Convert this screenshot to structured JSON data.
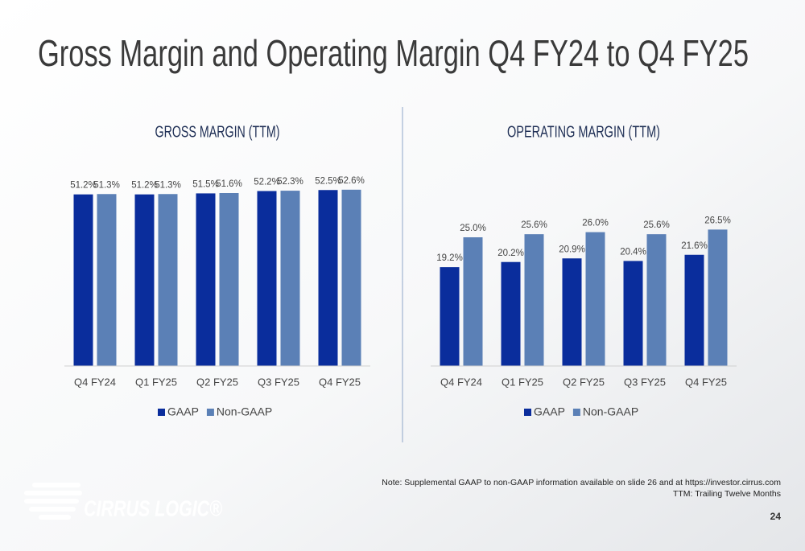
{
  "title": "Gross Margin and Operating Margin Q4 FY24 to Q4 FY25",
  "chart_data": [
    {
      "type": "bar",
      "title": "GROSS MARGIN (TTM)",
      "categories": [
        "Q4 FY24",
        "Q1 FY25",
        "Q2 FY25",
        "Q3 FY25",
        "Q4 FY25"
      ],
      "series": [
        {
          "name": "GAAP",
          "color": "#0a2d9c",
          "values": [
            51.2,
            51.2,
            51.5,
            52.2,
            52.5
          ],
          "value_labels": [
            "51.2%",
            "51.2%",
            "51.5%",
            "52.2%",
            "52.5%"
          ]
        },
        {
          "name": "Non-GAAP",
          "color": "#5b80b6",
          "values": [
            51.3,
            51.3,
            51.6,
            52.3,
            52.6
          ],
          "value_labels": [
            "51.3%",
            "51.3%",
            "51.6%",
            "52.3%",
            "52.6%"
          ]
        }
      ],
      "ylim": [
        0,
        60
      ],
      "legend": "bottom"
    },
    {
      "type": "bar",
      "title": "OPERATING MARGIN (TTM)",
      "categories": [
        "Q4 FY24",
        "Q1 FY25",
        "Q2 FY25",
        "Q3 FY25",
        "Q4 FY25"
      ],
      "series": [
        {
          "name": "GAAP",
          "color": "#0a2d9c",
          "values": [
            19.2,
            20.2,
            20.9,
            20.4,
            21.6
          ],
          "value_labels": [
            "19.2%",
            "20.2%",
            "20.9%",
            "20.4%",
            "21.6%"
          ]
        },
        {
          "name": "Non-GAAP",
          "color": "#5b80b6",
          "values": [
            25.0,
            25.6,
            26.0,
            25.6,
            26.5
          ],
          "value_labels": [
            "25.0%",
            "25.6%",
            "26.0%",
            "25.6%",
            "26.5%"
          ]
        }
      ],
      "ylim": [
        0,
        30
      ],
      "legend": "bottom"
    }
  ],
  "note": [
    "Note: Supplemental GAAP to non-GAAP information available on slide 26 and at https://investor.cirrus.com",
    "TTM: Trailing Twelve Months"
  ],
  "page_number": "24",
  "logo": "CIRRUS LOGIC®"
}
